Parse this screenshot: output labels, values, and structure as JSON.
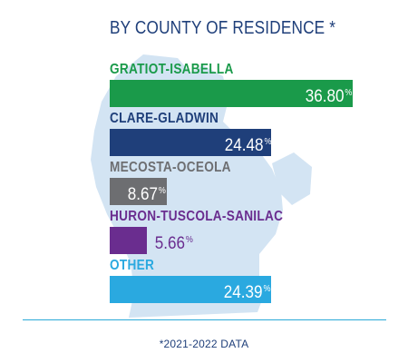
{
  "chart_data": {
    "type": "bar",
    "orientation": "horizontal",
    "title": "BY COUNTY OF RESIDENCE *",
    "categories": [
      "GRATIOT-ISABELLA",
      "CLARE-GLADWIN",
      "MECOSTA-OCEOLA",
      "HURON-TUSCOLA-SANILAC",
      "OTHER"
    ],
    "values": [
      36.8,
      24.48,
      8.67,
      5.66,
      24.39
    ],
    "value_labels": [
      "36.80",
      "24.48",
      "8.67",
      "5.66",
      "24.39"
    ],
    "unit": "%",
    "xlim": [
      0,
      36.8
    ],
    "grid": false,
    "legend": "none",
    "colors": [
      "#1a9a4a",
      "#1f3f7a",
      "#6d6e71",
      "#6a2d8f",
      "#2aa9e0"
    ],
    "label_colors": [
      "#1a9a4a",
      "#1f3f7a",
      "#6d6e71",
      "#6a2d8f",
      "#2aa9e0"
    ]
  },
  "background": {
    "map_color": "#d3e4f3"
  },
  "footnote": "*2021-2022 DATA"
}
